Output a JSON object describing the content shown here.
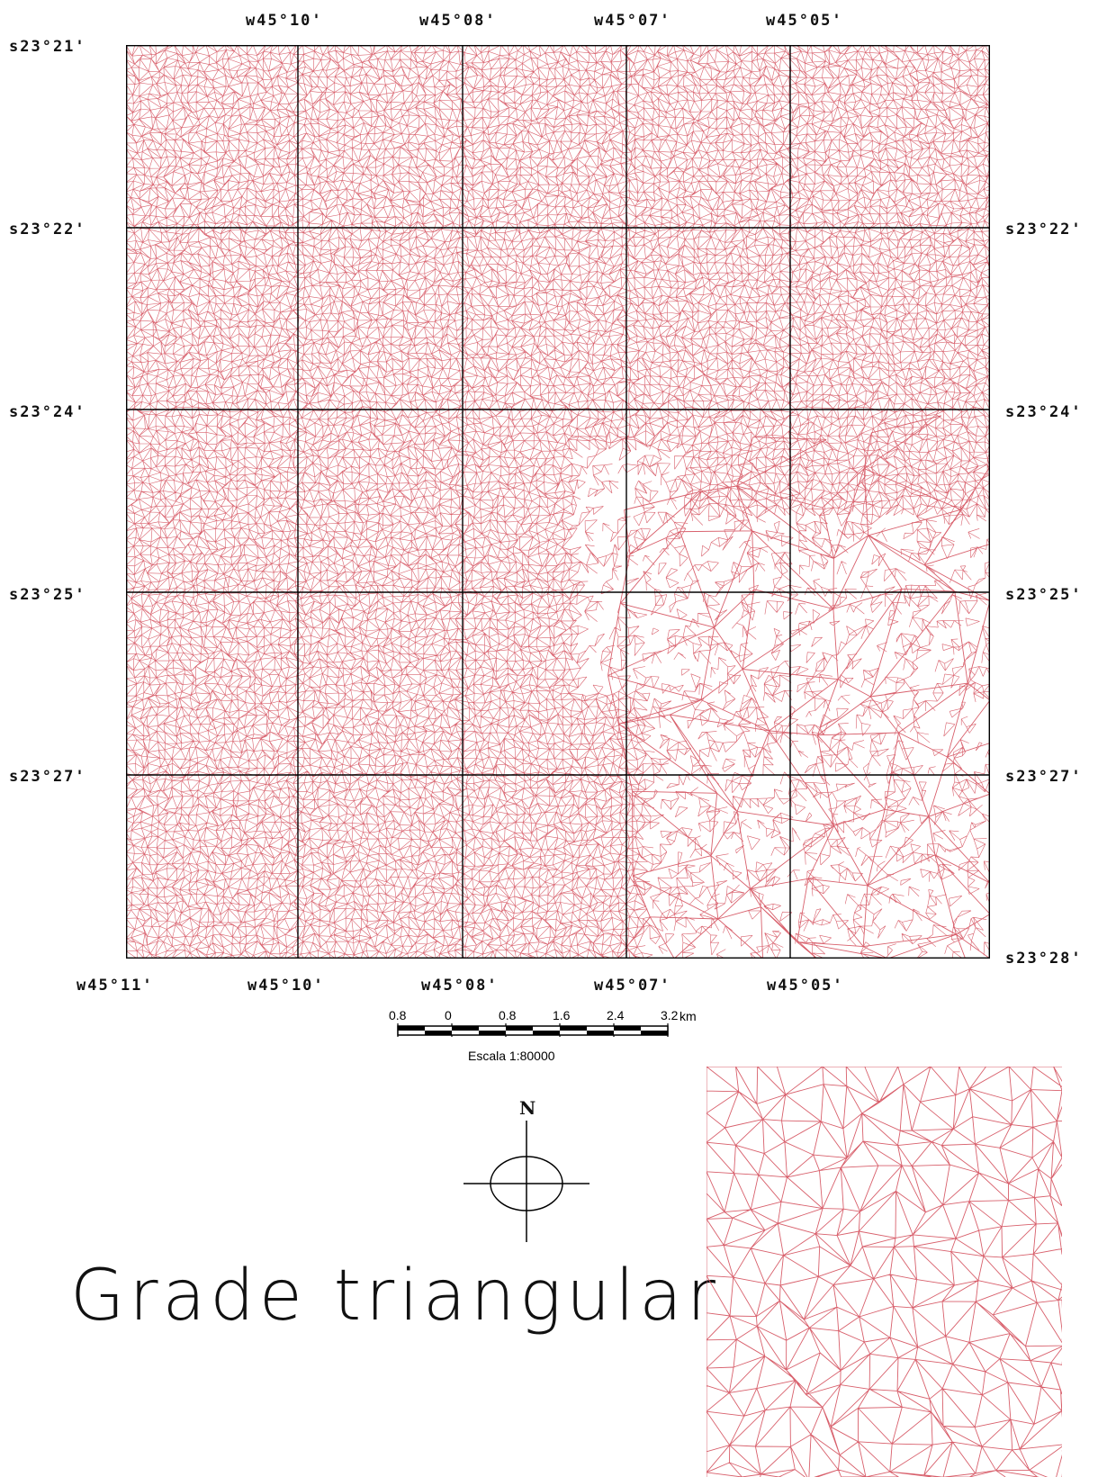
{
  "map": {
    "top_labels": [
      "w45°10'",
      "w45°08'",
      "w45°07'",
      "w45°05'"
    ],
    "bottom_labels": [
      "w45°11'",
      "w45°10'",
      "w45°08'",
      "w45°07'",
      "w45°05'"
    ],
    "left_labels": [
      "s23°21'",
      "s23°22'",
      "s23°24'",
      "s23°25'",
      "s23°27'"
    ],
    "right_labels": [
      "s23°22'",
      "s23°24'",
      "s23°25'",
      "s23°27'",
      "s23°28'"
    ],
    "line_color": "#d8606c",
    "grid_color": "#000000"
  },
  "scale_bar": {
    "ticks": [
      "0.8",
      "0",
      "0.8",
      "1.6",
      "2.4",
      "3.2"
    ],
    "unit": "km",
    "caption": "Escala 1:80000"
  },
  "north_arrow": {
    "letter": "N"
  },
  "title": "Grade triangular"
}
